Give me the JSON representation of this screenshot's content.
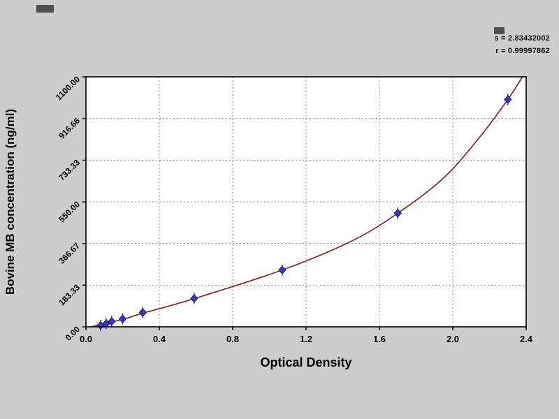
{
  "page": {
    "background": "#cdcdcd",
    "plot_background": "#ffffff"
  },
  "annotations": {
    "s": "s = 2.83432002",
    "r": "r = 0.99997862"
  },
  "chart_data": {
    "type": "scatter",
    "title": "",
    "xlabel": "Optical Density",
    "ylabel": "Bovine MB concentration (ng/ml)",
    "xlim": [
      0,
      2.4
    ],
    "ylim": [
      0,
      1100
    ],
    "x_ticks": [
      0,
      0.4,
      0.8,
      1.2,
      1.6,
      2.0,
      2.4
    ],
    "x_tick_labels": [
      "0.0",
      "0.4",
      "0.8",
      "1.2",
      "1.6",
      "2.0",
      "2.4"
    ],
    "y_ticks": [
      0,
      183.33,
      366.67,
      550,
      733.33,
      916.66,
      1100
    ],
    "y_tick_labels": [
      "0.00",
      "183.33",
      "366.67",
      "550.00",
      "733.33",
      "916.66",
      "1100.00"
    ],
    "grid": true,
    "legend_position": "none",
    "points": [
      {
        "x": 0.08,
        "y": 6
      },
      {
        "x": 0.11,
        "y": 14
      },
      {
        "x": 0.14,
        "y": 24
      },
      {
        "x": 0.2,
        "y": 35
      },
      {
        "x": 0.31,
        "y": 63
      },
      {
        "x": 0.59,
        "y": 125
      },
      {
        "x": 1.07,
        "y": 250
      },
      {
        "x": 1.7,
        "y": 500
      },
      {
        "x": 2.3,
        "y": 1000
      }
    ],
    "fit_curve": [
      {
        "x": 0.03,
        "y": 0
      },
      {
        "x": 0.2,
        "y": 33
      },
      {
        "x": 0.31,
        "y": 60
      },
      {
        "x": 0.59,
        "y": 124
      },
      {
        "x": 1.07,
        "y": 250
      },
      {
        "x": 1.45,
        "y": 378
      },
      {
        "x": 1.7,
        "y": 500
      },
      {
        "x": 1.95,
        "y": 655
      },
      {
        "x": 2.15,
        "y": 838
      },
      {
        "x": 2.3,
        "y": 1000
      },
      {
        "x": 2.38,
        "y": 1100
      }
    ],
    "colors": {
      "curve": "#8b2424",
      "marker": "#3b35c2",
      "marker_stroke": "#1c1a7e",
      "grid": "#909090",
      "axis": "#000000"
    }
  }
}
